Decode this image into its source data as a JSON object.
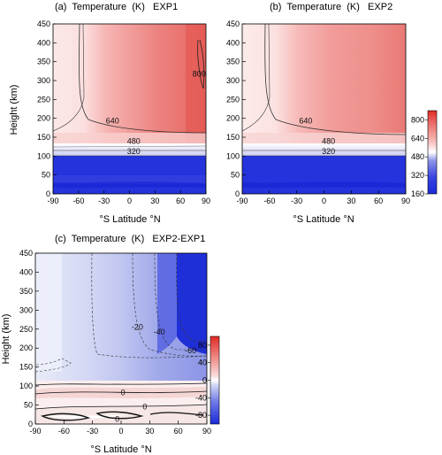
{
  "chart_data": [
    {
      "type": "heatmap",
      "title": "(a)  Temperature  (K)   EXP1",
      "xlabel": "°S   Latitude   °N",
      "ylabel": "Height (km)",
      "xlim": [
        -90,
        90
      ],
      "ylim": [
        0,
        450
      ],
      "xticks": [
        "-90",
        "-60",
        "-30",
        "0",
        "30",
        "60",
        "90"
      ],
      "yticks": [
        "0",
        "50",
        "100",
        "150",
        "200",
        "250",
        "300",
        "350",
        "400",
        "450"
      ],
      "contour_labels": [
        {
          "text": "800",
          "lat": 82,
          "height": 318
        },
        {
          "text": "640",
          "lat": -20,
          "height": 193
        },
        {
          "text": "480",
          "lat": 5,
          "height": 140
        },
        {
          "text": "320",
          "lat": 5,
          "height": 113
        }
      ]
    },
    {
      "type": "heatmap",
      "title": "(b)  Temperature  (K)   EXP2",
      "xlabel": "°S   Latitude   °N",
      "ylabel": "",
      "xlim": [
        -90,
        90
      ],
      "ylim": [
        0,
        450
      ],
      "xticks": [
        "-90",
        "-60",
        "-30",
        "0",
        "30",
        "60",
        "90"
      ],
      "yticks": [
        "0",
        "50",
        "100",
        "150",
        "200",
        "250",
        "300",
        "350",
        "400",
        "450"
      ],
      "colorbar": {
        "ticks": [
          "160",
          "320",
          "480",
          "640",
          "800"
        ],
        "range": [
          160,
          880
        ]
      },
      "contour_labels": [
        {
          "text": "640",
          "lat": -20,
          "height": 193
        },
        {
          "text": "480",
          "lat": 5,
          "height": 140
        },
        {
          "text": "320",
          "lat": 5,
          "height": 113
        }
      ]
    },
    {
      "type": "heatmap",
      "title": "(c)  Temperature  (K)   EXP2-EXP1",
      "xlabel": "°S   Latitude   °N",
      "ylabel": "Height (km)",
      "xlim": [
        -90,
        90
      ],
      "ylim": [
        0,
        450
      ],
      "xticks": [
        "-90",
        "-60",
        "-30",
        "0",
        "30",
        "60",
        "90"
      ],
      "yticks": [
        "0",
        "50",
        "100",
        "150",
        "200",
        "250",
        "300",
        "350",
        "400",
        "450"
      ],
      "colorbar": {
        "ticks": [
          "-80",
          "-40",
          "0",
          "40",
          "80"
        ],
        "range": [
          -100,
          100
        ]
      },
      "contour_labels": [
        {
          "text": "-20",
          "lat": 17,
          "height": 255
        },
        {
          "text": "-40",
          "lat": 40,
          "height": 242
        },
        {
          "text": "-60",
          "lat": 73,
          "height": 193
        },
        {
          "text": "0",
          "lat": 2,
          "height": 83
        },
        {
          "text": "0",
          "lat": 25,
          "height": 45
        },
        {
          "text": "0",
          "lat": -4,
          "height": 13
        }
      ]
    }
  ]
}
